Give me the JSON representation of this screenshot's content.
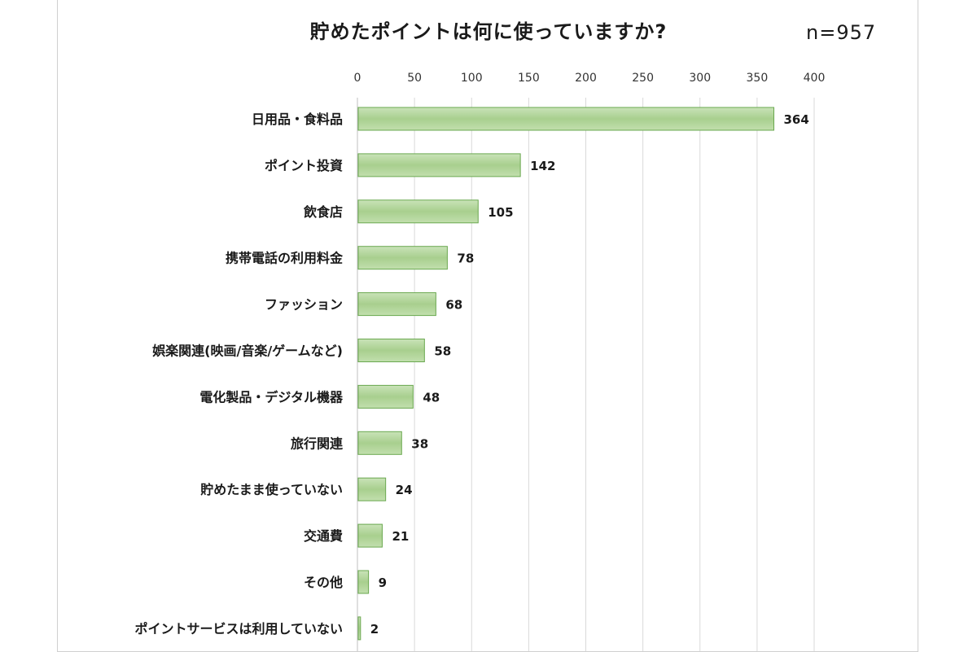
{
  "chart_data": {
    "type": "bar",
    "orientation": "horizontal",
    "title": "貯めたポイントは何に使っていますか?",
    "sample_size": "n=957",
    "categories": [
      "日用品・食料品",
      "ポイント投資",
      "飲食店",
      "携帯電話の利用料金",
      "ファッション",
      "娯楽関連(映画/音楽/ゲームなど)",
      "電化製品・デジタル機器",
      "旅行関連",
      "貯めたまま使っていない",
      "交通費",
      "その他",
      "ポイントサービスは利用していない"
    ],
    "values": [
      364,
      142,
      105,
      78,
      68,
      58,
      48,
      38,
      24,
      21,
      9,
      2
    ],
    "xlim": [
      0,
      400
    ],
    "xticks": [
      0,
      50,
      100,
      150,
      200,
      250,
      300,
      350,
      400
    ],
    "x_axis_position": "top",
    "grid": true,
    "bar_color": "#a8cf8e",
    "bar_edge_color": "#6aa84f",
    "gridline_color": "#d9d9d9"
  }
}
